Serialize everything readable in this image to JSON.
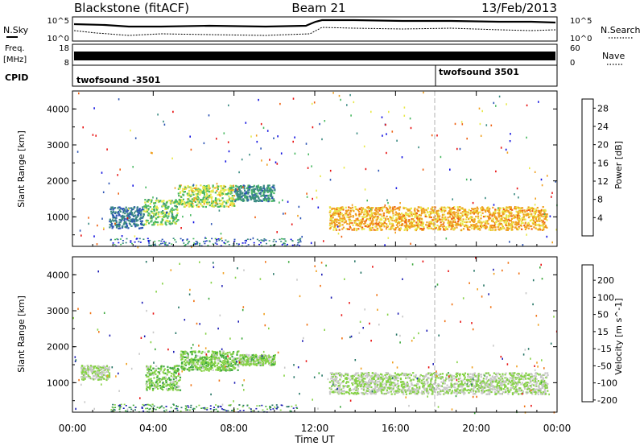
{
  "header": {
    "station": "Blackstone (fitACF)",
    "beam": "Beam 21",
    "date": "13/Feb/2013"
  },
  "nsky_panel": {
    "left_label": "N.Sky",
    "right_label": "N.Search",
    "left_ticks": [
      "10^5",
      "10^0"
    ],
    "right_ticks": [
      "10^5",
      "10^0"
    ]
  },
  "freq_panel": {
    "left_label_line1": "Freq.",
    "left_label_line2": "[MHz]",
    "left_ticks": [
      "18",
      "8"
    ],
    "right_label": "Nave",
    "right_ticks": [
      "60",
      "0"
    ]
  },
  "cpid_panel": {
    "label": "CPID",
    "programs": [
      {
        "name": "twofsound -3501",
        "start_hour": 0
      },
      {
        "name": "twofsound 3501",
        "start_hour": 18
      }
    ]
  },
  "time_axis": {
    "label": "Time UT",
    "ticks": [
      "00:00",
      "04:00",
      "08:00",
      "12:00",
      "16:00",
      "20:00",
      "00:00"
    ],
    "range_hours": [
      0,
      24
    ]
  },
  "chart_data": [
    {
      "type": "heatmap",
      "title": "",
      "xlabel": "Time UT",
      "ylabel": "Slant Range [km]",
      "ylim": [
        180,
        4500
      ],
      "yticks": [
        "1000",
        "2000",
        "3000",
        "4000"
      ],
      "colorbar": {
        "label": "Power [dB]",
        "ticks": [
          "4",
          "8",
          "12",
          "16",
          "20",
          "24",
          "28"
        ],
        "range": [
          0,
          30
        ],
        "colors": [
          "#1010e0",
          "#2c54b4",
          "#3a8a82",
          "#48b860",
          "#e8e84a",
          "#f0a020",
          "#ee6010",
          "#e81010"
        ]
      },
      "regions": [
        {
          "t0": 1.8,
          "t1": 3.5,
          "r0": 700,
          "r1": 1300,
          "level": 8
        },
        {
          "t0": 3.5,
          "t1": 5.2,
          "r0": 800,
          "r1": 1500,
          "level": 14
        },
        {
          "t0": 5.2,
          "t1": 8.0,
          "r0": 1300,
          "r1": 1900,
          "level": 16
        },
        {
          "t0": 8.0,
          "t1": 10.0,
          "r0": 1450,
          "r1": 1900,
          "level": 10
        },
        {
          "t0": 12.7,
          "t1": 23.5,
          "r0": 650,
          "r1": 1300,
          "level": 20
        }
      ]
    },
    {
      "type": "heatmap",
      "title": "",
      "xlabel": "Time UT",
      "ylabel": "Slant Range [km]",
      "ylim": [
        180,
        4500
      ],
      "yticks": [
        "1000",
        "2000",
        "3000",
        "4000"
      ],
      "colorbar": {
        "label": "Velocity [m s^-1]",
        "ticks": [
          "200",
          "100",
          "50",
          "15",
          "-15",
          "-50",
          "-100",
          "-200"
        ],
        "range": [
          -250,
          250
        ],
        "colors": [
          "#1c1cb4",
          "#247464",
          "#3ca83c",
          "#86d246",
          "#c8c8c8",
          "#f0a020",
          "#f07010",
          "#e81010"
        ]
      },
      "regions": [
        {
          "t0": 0.4,
          "t1": 1.8,
          "r0": 1100,
          "r1": 1500,
          "level": 0
        },
        {
          "t0": 3.6,
          "t1": 5.3,
          "r0": 800,
          "r1": 1500,
          "level": -40
        },
        {
          "t0": 5.3,
          "t1": 8.2,
          "r0": 1350,
          "r1": 1900,
          "level": -40
        },
        {
          "t0": 8.2,
          "t1": 10.0,
          "r0": 1500,
          "r1": 1800,
          "level": -20
        },
        {
          "t0": 12.7,
          "t1": 23.5,
          "r0": 700,
          "r1": 1300,
          "level": 0
        }
      ]
    }
  ]
}
